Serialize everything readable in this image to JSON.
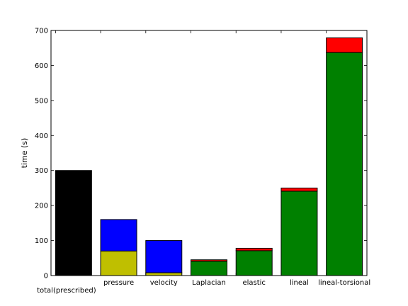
{
  "chart_data": {
    "type": "bar",
    "stacked": true,
    "title": "",
    "xlabel": "",
    "ylabel": "time (s)",
    "ylim": [
      0,
      700
    ],
    "yticks": [
      0,
      100,
      200,
      300,
      400,
      500,
      600,
      700
    ],
    "grid": false,
    "categories": [
      "total(prescribed)",
      "pressure",
      "velocity",
      "Laplacian",
      "elastic",
      "lineal",
      "lineal-torsional"
    ],
    "bars": [
      {
        "category": "total(prescribed)",
        "segments": [
          {
            "value": 300,
            "color": "#000000"
          }
        ]
      },
      {
        "category": "pressure",
        "segments": [
          {
            "value": 70,
            "color": "#bfbf00"
          },
          {
            "value": 90,
            "color": "#0000ff"
          }
        ]
      },
      {
        "category": "velocity",
        "segments": [
          {
            "value": 8,
            "color": "#bfbf00"
          },
          {
            "value": 92,
            "color": "#0000ff"
          }
        ]
      },
      {
        "category": "Laplacian",
        "segments": [
          {
            "value": 41,
            "color": "#008000"
          },
          {
            "value": 4,
            "color": "#ff0000"
          }
        ]
      },
      {
        "category": "elastic",
        "segments": [
          {
            "value": 71,
            "color": "#008000"
          },
          {
            "value": 7,
            "color": "#ff0000"
          }
        ]
      },
      {
        "category": "lineal",
        "segments": [
          {
            "value": 241,
            "color": "#008000"
          },
          {
            "value": 9,
            "color": "#ff0000"
          }
        ]
      },
      {
        "category": "lineal-torsional",
        "segments": [
          {
            "value": 637,
            "color": "#008000"
          },
          {
            "value": 42,
            "color": "#ff0000"
          }
        ]
      }
    ]
  }
}
